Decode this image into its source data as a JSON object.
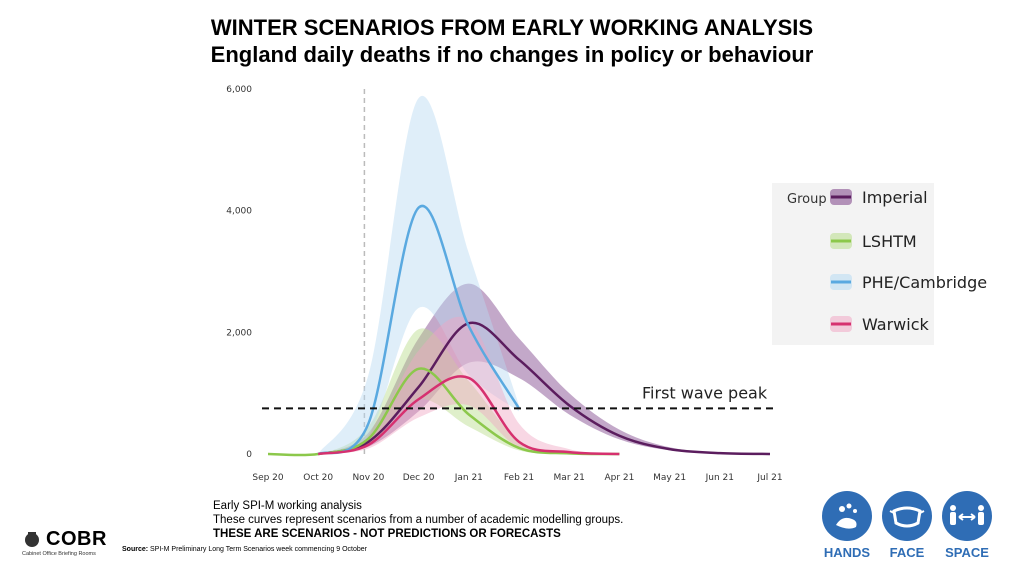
{
  "header": {
    "title": "WINTER SCENARIOS FROM EARLY WORKING ANALYSIS",
    "subtitle": "England daily deaths if no changes in policy or behaviour"
  },
  "chart_data": {
    "type": "line",
    "x_ticks": [
      "Sep 20",
      "Oct 20",
      "Nov 20",
      "Dec 20",
      "Jan 21",
      "Feb 21",
      "Mar 21",
      "Apr 21",
      "May 21",
      "Jun 21",
      "Jul 21"
    ],
    "y_ticks": [
      "0",
      "2,000",
      "4,000",
      "6,000"
    ],
    "ylim": [
      0,
      6000
    ],
    "grid": false,
    "legend_title": "Group",
    "legend_position": "right",
    "series": [
      {
        "name": "Imperial",
        "color": "#5b1d5e",
        "band_color": "#7b3f87",
        "points": [
          [
            "Oct 20",
            0
          ],
          [
            "Nov 20",
            200
          ],
          [
            "Dec 20",
            1100
          ],
          [
            "Jan 21",
            2150
          ],
          [
            "Feb 21",
            1550
          ],
          [
            "Mar 21",
            800
          ],
          [
            "Apr 21",
            300
          ],
          [
            "May 21",
            80
          ],
          [
            "Jun 21",
            15
          ],
          [
            "Jul 21",
            0
          ]
        ],
        "upper": [
          [
            "Oct 20",
            0
          ],
          [
            "Nov 20",
            350
          ],
          [
            "Dec 20",
            1900
          ],
          [
            "Jan 21",
            2800
          ],
          [
            "Feb 21",
            1900
          ],
          [
            "Mar 21",
            1000
          ],
          [
            "Apr 21",
            400
          ],
          [
            "May 21",
            110
          ],
          [
            "Jun 21",
            20
          ],
          [
            "Jul 21",
            0
          ]
        ],
        "lower": [
          [
            "Oct 20",
            0
          ],
          [
            "Nov 20",
            120
          ],
          [
            "Dec 20",
            700
          ],
          [
            "Jan 21",
            1500
          ],
          [
            "Feb 21",
            1250
          ],
          [
            "Mar 21",
            650
          ],
          [
            "Apr 21",
            240
          ],
          [
            "May 21",
            60
          ],
          [
            "Jun 21",
            10
          ],
          [
            "Jul 21",
            0
          ]
        ]
      },
      {
        "name": "LSHTM",
        "color": "#8cc84b",
        "band_color": "#b8dc8a",
        "points": [
          [
            "Sep 20",
            0
          ],
          [
            "Oct 20",
            0
          ],
          [
            "Nov 20",
            250
          ],
          [
            "Dec 20",
            1400
          ],
          [
            "Jan 21",
            650
          ],
          [
            "Feb 21",
            100
          ],
          [
            "Mar 21",
            10
          ],
          [
            "Apr 21",
            0
          ]
        ],
        "upper": [
          [
            "Sep 20",
            0
          ],
          [
            "Oct 20",
            0
          ],
          [
            "Nov 20",
            450
          ],
          [
            "Dec 20",
            2050
          ],
          [
            "Jan 21",
            1200
          ],
          [
            "Feb 21",
            220
          ],
          [
            "Mar 21",
            20
          ],
          [
            "Apr 21",
            0
          ]
        ],
        "lower": [
          [
            "Sep 20",
            0
          ],
          [
            "Oct 20",
            0
          ],
          [
            "Nov 20",
            150
          ],
          [
            "Dec 20",
            900
          ],
          [
            "Jan 21",
            450
          ],
          [
            "Feb 21",
            60
          ],
          [
            "Mar 21",
            5
          ],
          [
            "Apr 21",
            0
          ]
        ]
      },
      {
        "name": "PHE/Cambridge",
        "color": "#5aa9e0",
        "band_color": "#b7daf2",
        "points": [
          [
            "Oct 20",
            0
          ],
          [
            "Nov 20",
            500
          ],
          [
            "Dec 20",
            4050
          ],
          [
            "Jan 21",
            2100
          ],
          [
            "Feb 21",
            750
          ]
        ],
        "upper": [
          [
            "Oct 20",
            0
          ],
          [
            "Nov 20",
            1300
          ],
          [
            "Dec 20",
            5850
          ],
          [
            "Jan 21",
            3300
          ],
          [
            "Feb 21",
            800
          ]
        ],
        "lower": [
          [
            "Oct 20",
            0
          ],
          [
            "Nov 20",
            300
          ],
          [
            "Dec 20",
            2400
          ],
          [
            "Jan 21",
            1300
          ],
          [
            "Feb 21",
            700
          ]
        ]
      },
      {
        "name": "Warwick",
        "color": "#d6306f",
        "band_color": "#f0a7c4",
        "points": [
          [
            "Oct 20",
            0
          ],
          [
            "Nov 20",
            150
          ],
          [
            "Dec 20",
            900
          ],
          [
            "Jan 21",
            1250
          ],
          [
            "Feb 21",
            200
          ],
          [
            "Mar 21",
            30
          ],
          [
            "Apr 21",
            0
          ]
        ],
        "upper": [
          [
            "Oct 20",
            0
          ],
          [
            "Nov 20",
            250
          ],
          [
            "Dec 20",
            1700
          ],
          [
            "Jan 21",
            2200
          ],
          [
            "Feb 21",
            500
          ],
          [
            "Mar 21",
            80
          ],
          [
            "Apr 21",
            0
          ]
        ],
        "lower": [
          [
            "Oct 20",
            0
          ],
          [
            "Nov 20",
            90
          ],
          [
            "Dec 20",
            600
          ],
          [
            "Jan 21",
            800
          ],
          [
            "Feb 21",
            100
          ],
          [
            "Mar 21",
            10
          ],
          [
            "Apr 21",
            0
          ]
        ]
      }
    ],
    "reference_line": {
      "label": "First wave peak",
      "value": 750
    }
  },
  "notes": {
    "line1": "Early SPI-M working analysis",
    "line2": "These curves represent scenarios from a number of academic modelling groups.",
    "line3": "THESE ARE SCENARIOS  - NOT PREDICTIONS OR FORECASTS"
  },
  "source": {
    "label": "Source:",
    "text": " SPI-M Preliminary Long Term Scenarios week commencing 9 October"
  },
  "logo": {
    "word": "COBR",
    "sub": "Cabinet Office Briefing Rooms"
  },
  "campaign": {
    "items": [
      "HANDS",
      "FACE",
      "SPACE"
    ],
    "color": "#2f6db5"
  }
}
